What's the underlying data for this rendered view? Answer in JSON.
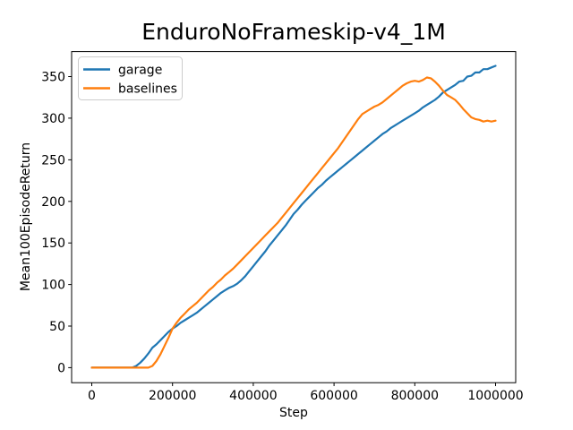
{
  "chart_data": {
    "type": "line",
    "title": "EnduroNoFrameskip-v4_1M",
    "xlabel": "Step",
    "ylabel": "Mean100EpisodeReturn",
    "xlim": [
      -50000,
      1050000
    ],
    "ylim": [
      -18.1,
      380.1
    ],
    "grid": false,
    "legend_position": "upper left",
    "x_ticks": {
      "values": [
        0,
        200000,
        400000,
        600000,
        800000,
        1000000
      ],
      "labels": [
        "0",
        "200000",
        "400000",
        "600000",
        "800000",
        "1000000"
      ]
    },
    "y_ticks": {
      "values": [
        0,
        50,
        100,
        150,
        200,
        250,
        300,
        350
      ],
      "labels": [
        "0",
        "50",
        "100",
        "150",
        "200",
        "250",
        "300",
        "350"
      ]
    },
    "series": [
      {
        "name": "garage",
        "color": "#1f77b4",
        "points": [
          [
            0,
            0
          ],
          [
            25000,
            0
          ],
          [
            50000,
            0
          ],
          [
            75000,
            0
          ],
          [
            100000,
            0
          ],
          [
            110000,
            2
          ],
          [
            120000,
            6
          ],
          [
            130000,
            11
          ],
          [
            140000,
            17
          ],
          [
            150000,
            24
          ],
          [
            160000,
            28
          ],
          [
            170000,
            33
          ],
          [
            180000,
            38
          ],
          [
            190000,
            43
          ],
          [
            200000,
            47
          ],
          [
            210000,
            50
          ],
          [
            220000,
            54
          ],
          [
            230000,
            57
          ],
          [
            240000,
            60
          ],
          [
            250000,
            63
          ],
          [
            260000,
            66
          ],
          [
            270000,
            70
          ],
          [
            280000,
            74
          ],
          [
            290000,
            78
          ],
          [
            300000,
            82
          ],
          [
            310000,
            86
          ],
          [
            320000,
            90
          ],
          [
            330000,
            93
          ],
          [
            340000,
            96
          ],
          [
            350000,
            98
          ],
          [
            360000,
            101
          ],
          [
            370000,
            105
          ],
          [
            380000,
            110
          ],
          [
            390000,
            116
          ],
          [
            400000,
            122
          ],
          [
            410000,
            128
          ],
          [
            420000,
            134
          ],
          [
            430000,
            140
          ],
          [
            440000,
            147
          ],
          [
            450000,
            153
          ],
          [
            460000,
            159
          ],
          [
            470000,
            165
          ],
          [
            480000,
            171
          ],
          [
            490000,
            178
          ],
          [
            500000,
            185
          ],
          [
            510000,
            190
          ],
          [
            520000,
            196
          ],
          [
            530000,
            201
          ],
          [
            540000,
            206
          ],
          [
            550000,
            211
          ],
          [
            560000,
            216
          ],
          [
            570000,
            220
          ],
          [
            580000,
            225
          ],
          [
            590000,
            229
          ],
          [
            600000,
            233
          ],
          [
            610000,
            237
          ],
          [
            620000,
            241
          ],
          [
            630000,
            245
          ],
          [
            640000,
            249
          ],
          [
            650000,
            253
          ],
          [
            660000,
            257
          ],
          [
            670000,
            261
          ],
          [
            680000,
            265
          ],
          [
            690000,
            269
          ],
          [
            700000,
            273
          ],
          [
            710000,
            277
          ],
          [
            720000,
            281
          ],
          [
            730000,
            284
          ],
          [
            740000,
            288
          ],
          [
            750000,
            291
          ],
          [
            760000,
            294
          ],
          [
            770000,
            297
          ],
          [
            780000,
            300
          ],
          [
            790000,
            303
          ],
          [
            800000,
            306
          ],
          [
            810000,
            309
          ],
          [
            820000,
            313
          ],
          [
            830000,
            316
          ],
          [
            840000,
            319
          ],
          [
            850000,
            322
          ],
          [
            860000,
            326
          ],
          [
            870000,
            331
          ],
          [
            880000,
            334
          ],
          [
            890000,
            337
          ],
          [
            900000,
            340
          ],
          [
            910000,
            344
          ],
          [
            920000,
            345
          ],
          [
            930000,
            350
          ],
          [
            940000,
            351
          ],
          [
            950000,
            355
          ],
          [
            960000,
            355
          ],
          [
            970000,
            359
          ],
          [
            980000,
            359
          ],
          [
            990000,
            361
          ],
          [
            1000000,
            363
          ]
        ]
      },
      {
        "name": "baselines",
        "color": "#ff7f0e",
        "points": [
          [
            0,
            0
          ],
          [
            25000,
            0
          ],
          [
            50000,
            0
          ],
          [
            75000,
            0
          ],
          [
            100000,
            0
          ],
          [
            120000,
            0
          ],
          [
            140000,
            0
          ],
          [
            150000,
            2
          ],
          [
            160000,
            8
          ],
          [
            170000,
            16
          ],
          [
            180000,
            26
          ],
          [
            190000,
            36
          ],
          [
            200000,
            47
          ],
          [
            210000,
            54
          ],
          [
            220000,
            60
          ],
          [
            230000,
            65
          ],
          [
            240000,
            70
          ],
          [
            250000,
            74
          ],
          [
            260000,
            78
          ],
          [
            270000,
            83
          ],
          [
            280000,
            88
          ],
          [
            290000,
            93
          ],
          [
            300000,
            97
          ],
          [
            310000,
            102
          ],
          [
            320000,
            106
          ],
          [
            330000,
            111
          ],
          [
            340000,
            115
          ],
          [
            350000,
            119
          ],
          [
            360000,
            124
          ],
          [
            370000,
            129
          ],
          [
            380000,
            134
          ],
          [
            390000,
            139
          ],
          [
            400000,
            144
          ],
          [
            410000,
            149
          ],
          [
            420000,
            154
          ],
          [
            430000,
            159
          ],
          [
            440000,
            164
          ],
          [
            450000,
            169
          ],
          [
            460000,
            174
          ],
          [
            470000,
            180
          ],
          [
            480000,
            186
          ],
          [
            490000,
            192
          ],
          [
            500000,
            198
          ],
          [
            510000,
            204
          ],
          [
            520000,
            210
          ],
          [
            530000,
            216
          ],
          [
            540000,
            222
          ],
          [
            550000,
            228
          ],
          [
            560000,
            234
          ],
          [
            570000,
            240
          ],
          [
            580000,
            246
          ],
          [
            590000,
            252
          ],
          [
            600000,
            258
          ],
          [
            610000,
            264
          ],
          [
            620000,
            271
          ],
          [
            630000,
            278
          ],
          [
            640000,
            285
          ],
          [
            650000,
            292
          ],
          [
            660000,
            299
          ],
          [
            670000,
            305
          ],
          [
            680000,
            308
          ],
          [
            690000,
            311
          ],
          [
            700000,
            314
          ],
          [
            710000,
            316
          ],
          [
            720000,
            319
          ],
          [
            730000,
            323
          ],
          [
            740000,
            327
          ],
          [
            750000,
            331
          ],
          [
            760000,
            335
          ],
          [
            770000,
            339
          ],
          [
            780000,
            342
          ],
          [
            790000,
            344
          ],
          [
            800000,
            345
          ],
          [
            810000,
            344
          ],
          [
            820000,
            346
          ],
          [
            830000,
            349
          ],
          [
            840000,
            348
          ],
          [
            850000,
            344
          ],
          [
            860000,
            339
          ],
          [
            870000,
            333
          ],
          [
            880000,
            328
          ],
          [
            890000,
            325
          ],
          [
            900000,
            322
          ],
          [
            910000,
            317
          ],
          [
            920000,
            311
          ],
          [
            930000,
            306
          ],
          [
            940000,
            301
          ],
          [
            950000,
            299
          ],
          [
            960000,
            298
          ],
          [
            970000,
            296
          ],
          [
            980000,
            297
          ],
          [
            990000,
            296
          ],
          [
            1000000,
            297
          ]
        ]
      }
    ]
  }
}
